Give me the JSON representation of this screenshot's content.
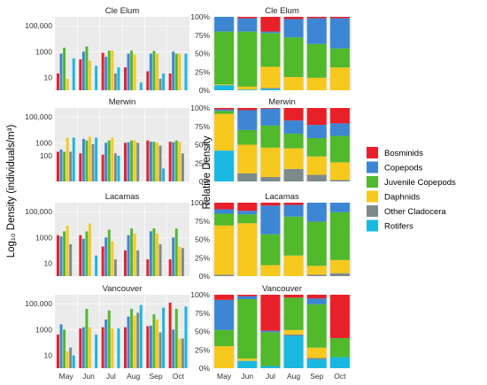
{
  "colors": {
    "Bosminids": "#e8202a",
    "Copepods": "#3d86d4",
    "Juvenile Copepods": "#52b82c",
    "Daphnids": "#f7c81e",
    "Other Cladocera": "#7d8a8c",
    "Rotifers": "#1ab8e0"
  },
  "chart_data": [
    {
      "type": "bar",
      "panel": "left",
      "title": "Cle Elum",
      "ylabel": "Log₁₀ Density (individuals/m³)",
      "yscale": "log",
      "ylim": [
        1,
        500000
      ],
      "ytick_labels": [
        "10",
        "1000",
        "100,000"
      ],
      "categories": [
        "May",
        "Jun",
        "Jul",
        "Aug",
        "Sep",
        "Oct"
      ],
      "series": [
        {
          "name": "Bosminids",
          "values": [
            20,
            250,
            800,
            60,
            30,
            20
          ]
        },
        {
          "name": "Copepods",
          "values": [
            700,
            1000,
            400,
            700,
            700,
            1000
          ]
        },
        {
          "name": "Juvenile Copepods",
          "values": [
            2000,
            2500,
            1200,
            1200,
            1100,
            700
          ]
        },
        {
          "name": "Daphnids",
          "values": [
            8,
            200,
            1200,
            600,
            700,
            700
          ]
        },
        {
          "name": "Other Cladocera",
          "values": [
            null,
            null,
            20,
            null,
            8,
            null
          ]
        },
        {
          "name": "Rotifers",
          "values": [
            300,
            80,
            60,
            4,
            20,
            700
          ]
        }
      ]
    },
    {
      "type": "bar",
      "panel": "left",
      "title": "Merwin",
      "yscale": "log",
      "ylim": [
        1,
        500000
      ],
      "ytick_labels": [
        "100",
        "1000",
        "100,000"
      ],
      "categories": [
        "May",
        "Jun",
        "Jul",
        "Aug",
        "Sep",
        "Oct"
      ],
      "series": [
        {
          "name": "Bosminids",
          "values": [
            200,
            150,
            120,
            1000,
            1500,
            1200
          ]
        },
        {
          "name": "Copepods",
          "values": [
            300,
            2000,
            1000,
            1100,
            1200,
            1100
          ]
        },
        {
          "name": "Juvenile Copepods",
          "values": [
            200,
            1500,
            1500,
            1500,
            1200,
            1500
          ]
        },
        {
          "name": "Daphnids",
          "values": [
            2500,
            3000,
            2500,
            1500,
            1000,
            1200
          ]
        },
        {
          "name": "Other Cladocera",
          "values": [
            200,
            800,
            150,
            1000,
            600,
            150
          ]
        },
        {
          "name": "Rotifers",
          "values": [
            2500,
            2500,
            100,
            null,
            10,
            null
          ]
        }
      ]
    },
    {
      "type": "bar",
      "panel": "left",
      "title": "Lacamas",
      "yscale": "log",
      "ylim": [
        1,
        500000
      ],
      "ytick_labels": [
        "10",
        "1000",
        "100,000"
      ],
      "categories": [
        "May",
        "Jun",
        "Jul",
        "Aug",
        "Sep",
        "Oct"
      ],
      "series": [
        {
          "name": "Bosminids",
          "values": [
            1500,
            1500,
            200,
            100,
            20,
            20
          ]
        },
        {
          "name": "Copepods",
          "values": [
            1200,
            800,
            1000,
            1500,
            3000,
            1000
          ]
        },
        {
          "name": "Juvenile Copepods",
          "values": [
            3000,
            3000,
            4000,
            5000,
            5000,
            5000
          ]
        },
        {
          "name": "Daphnids",
          "values": [
            8000,
            12000,
            500,
            2000,
            2000,
            200
          ]
        },
        {
          "name": "Other Cladocera",
          "values": [
            300,
            null,
            20,
            100,
            300,
            150
          ]
        },
        {
          "name": "Rotifers",
          "values": [
            null,
            40,
            null,
            null,
            null,
            null
          ]
        }
      ]
    },
    {
      "type": "bar",
      "panel": "left",
      "title": "Vancouver",
      "yscale": "log",
      "ylim": [
        1,
        500000
      ],
      "ytick_labels": [
        "10",
        "1000",
        "100,000"
      ],
      "categories": [
        "May",
        "Jun",
        "Jul",
        "Aug",
        "Sep",
        "Oct"
      ],
      "series": [
        {
          "name": "Bosminids",
          "values": [
            400,
            1200,
            1500,
            1500,
            1800,
            120000
          ]
        },
        {
          "name": "Copepods",
          "values": [
            2500,
            1500,
            6000,
            10000,
            2000,
            1000
          ]
        },
        {
          "name": "Juvenile Copepods",
          "values": [
            1000,
            40000,
            30000,
            40000,
            15000,
            40000
          ]
        },
        {
          "name": "Daphnids",
          "values": [
            20,
            1500,
            1200,
            12000,
            6000,
            200
          ]
        },
        {
          "name": "Other Cladocera",
          "values": [
            40,
            null,
            null,
            20000,
            600,
            200
          ]
        },
        {
          "name": "Rotifers",
          "values": [
            10,
            400,
            1200,
            80000,
            50000,
            60000
          ]
        }
      ]
    },
    {
      "type": "bar",
      "stacked": true,
      "panel": "right",
      "title": "Cle Elum",
      "ylabel": "Relative Density",
      "ylim": [
        0,
        100
      ],
      "ytick_labels": [
        "0%",
        "25%",
        "50%",
        "75%",
        "100%"
      ],
      "categories": [
        "May",
        "Jun",
        "Jul",
        "Aug",
        "Sep",
        "Oct"
      ],
      "series": [
        {
          "name": "Rotifers",
          "values": [
            7,
            1,
            2,
            0,
            0,
            0
          ]
        },
        {
          "name": "Other Cladocera",
          "values": [
            0,
            0,
            1,
            0,
            0,
            0
          ]
        },
        {
          "name": "Daphnids",
          "values": [
            1,
            4,
            29,
            18,
            17,
            31
          ]
        },
        {
          "name": "Juvenile Copepods",
          "values": [
            72,
            75,
            46,
            54,
            46,
            26
          ]
        },
        {
          "name": "Copepods",
          "values": [
            20,
            18,
            2,
            25,
            35,
            41
          ]
        },
        {
          "name": "Bosminids",
          "values": [
            0,
            2,
            20,
            3,
            2,
            2
          ]
        }
      ]
    },
    {
      "type": "bar",
      "stacked": true,
      "panel": "right",
      "title": "Merwin",
      "ylim": [
        0,
        100
      ],
      "ytick_labels": [
        "0%",
        "25%",
        "50%",
        "75%",
        "100%"
      ],
      "categories": [
        "May",
        "Jun",
        "Jul",
        "Aug",
        "Sep",
        "Oct"
      ],
      "series": [
        {
          "name": "Rotifers",
          "values": [
            42,
            0,
            0,
            0,
            0,
            0
          ]
        },
        {
          "name": "Other Cladocera",
          "values": [
            0,
            11,
            6,
            17,
            9,
            2
          ]
        },
        {
          "name": "Daphnids",
          "values": [
            50,
            39,
            40,
            28,
            25,
            24
          ]
        },
        {
          "name": "Juvenile Copepods",
          "values": [
            4,
            20,
            30,
            20,
            25,
            36
          ]
        },
        {
          "name": "Copepods",
          "values": [
            2,
            27,
            23,
            18,
            18,
            17
          ]
        },
        {
          "name": "Bosminids",
          "values": [
            2,
            3,
            1,
            17,
            23,
            21
          ]
        }
      ]
    },
    {
      "type": "bar",
      "stacked": true,
      "panel": "right",
      "title": "Lacamas",
      "ylim": [
        0,
        100
      ],
      "ytick_labels": [
        "0%",
        "25%",
        "50%",
        "75%",
        "100%"
      ],
      "categories": [
        "May",
        "Jun",
        "Jul",
        "Aug",
        "Sep",
        "Oct"
      ],
      "series": [
        {
          "name": "Rotifers",
          "values": [
            0,
            0,
            0,
            0,
            0,
            0
          ]
        },
        {
          "name": "Other Cladocera",
          "values": [
            2,
            0,
            0,
            0,
            2,
            4
          ]
        },
        {
          "name": "Daphnids",
          "values": [
            67,
            72,
            15,
            28,
            12,
            18
          ]
        },
        {
          "name": "Juvenile Copepods",
          "values": [
            16,
            12,
            42,
            53,
            60,
            65
          ]
        },
        {
          "name": "Copepods",
          "values": [
            6,
            5,
            39,
            16,
            26,
            13
          ]
        },
        {
          "name": "Bosminids",
          "values": [
            9,
            11,
            4,
            3,
            0,
            0
          ]
        }
      ]
    },
    {
      "type": "bar",
      "stacked": true,
      "panel": "right",
      "title": "Vancouver",
      "ylim": [
        0,
        100
      ],
      "ytick_labels": [
        "0%",
        "25%",
        "50%",
        "75%",
        "100%"
      ],
      "categories": [
        "May",
        "Jun",
        "Jul",
        "Aug",
        "Sep",
        "Oct"
      ],
      "series": [
        {
          "name": "Rotifers",
          "values": [
            0,
            10,
            3,
            44,
            12,
            15
          ]
        },
        {
          "name": "Other Cladocera",
          "values": [
            0,
            0,
            0,
            2,
            2,
            0
          ]
        },
        {
          "name": "Daphnids",
          "values": [
            30,
            3,
            0,
            6,
            14,
            0
          ]
        },
        {
          "name": "Juvenile Copepods",
          "values": [
            22,
            81,
            46,
            44,
            59,
            26
          ]
        },
        {
          "name": "Copepods",
          "values": [
            41,
            4,
            2,
            0,
            8,
            0
          ]
        },
        {
          "name": "Bosminids",
          "values": [
            7,
            2,
            49,
            4,
            5,
            59
          ]
        }
      ]
    }
  ],
  "legend": {
    "position": "right",
    "entries": [
      "Bosminids",
      "Copepods",
      "Juvenile Copepods",
      "Daphnids",
      "Other Cladocera",
      "Rotifers"
    ]
  }
}
